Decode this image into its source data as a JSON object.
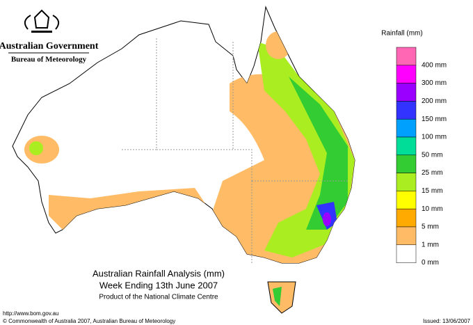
{
  "header": {
    "government": "Australian Government",
    "bureau": "Bureau of Meteorology"
  },
  "legend": {
    "title": "Rainfall (mm)",
    "colors": [
      "#ff66b3",
      "#ff00ff",
      "#9900ff",
      "#3333ff",
      "#00a0ff",
      "#00dd99",
      "#33cc33",
      "#aaee22",
      "#ffff00",
      "#ffaa00",
      "#ffbb66",
      "#ffffff"
    ],
    "labels": [
      "400 mm",
      "300 mm",
      "200 mm",
      "150 mm",
      "100 mm",
      "50 mm",
      "25 mm",
      "15 mm",
      "10 mm",
      "5 mm",
      "1 mm",
      "0 mm"
    ]
  },
  "map_title": {
    "line1": "Australian Rainfall Analysis (mm)",
    "line2": "Week Ending 13th June 2007",
    "line3": "Product of the National Climate Centre"
  },
  "footer": {
    "url": "http://www.bom.gov.au",
    "copyright": "© Commonwealth of Australia 2007, Australian Bureau of Meteorology",
    "issued": "Issued: 13/06/2007"
  }
}
